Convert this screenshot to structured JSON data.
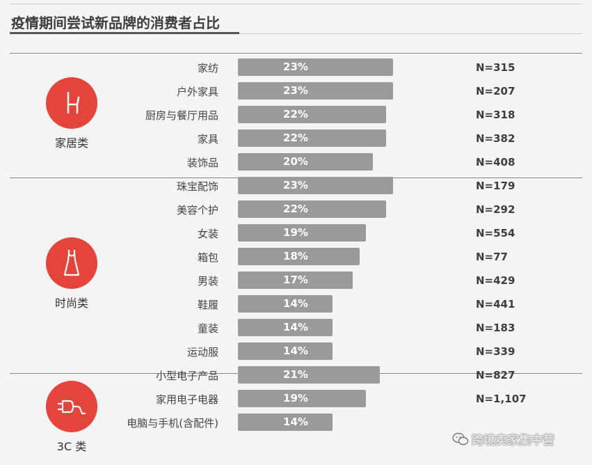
{
  "chart_data": {
    "type": "bar",
    "orientation": "horizontal",
    "title": "疫情期间尝试新品牌的消费者占比",
    "xlim": [
      0,
      100
    ],
    "groups": [
      {
        "name": "家居类",
        "icon": "chair-icon",
        "items": [
          {
            "category": "家纺",
            "value": 23,
            "label": "23%",
            "n": "N=315"
          },
          {
            "category": "户外家具",
            "value": 23,
            "label": "23%",
            "n": "N=207"
          },
          {
            "category": "厨房与餐厅用品",
            "value": 22,
            "label": "22%",
            "n": "N=318"
          },
          {
            "category": "家具",
            "value": 22,
            "label": "22%",
            "n": "N=382"
          },
          {
            "category": "装饰品",
            "value": 20,
            "label": "20%",
            "n": "N=408"
          }
        ]
      },
      {
        "name": "时尚类",
        "icon": "dress-icon",
        "items": [
          {
            "category": "珠宝配饰",
            "value": 23,
            "label": "23%",
            "n": "N=179"
          },
          {
            "category": "美容个护",
            "value": 22,
            "label": "22%",
            "n": "N=292"
          },
          {
            "category": "女装",
            "value": 19,
            "label": "19%",
            "n": "N=554"
          },
          {
            "category": "箱包",
            "value": 18,
            "label": "18%",
            "n": "N=77"
          },
          {
            "category": "男装",
            "value": 17,
            "label": "17%",
            "n": "N=429"
          },
          {
            "category": "鞋履",
            "value": 14,
            "label": "14%",
            "n": "N=441"
          },
          {
            "category": "童装",
            "value": 14,
            "label": "14%",
            "n": "N=183"
          },
          {
            "category": "运动服",
            "value": 14,
            "label": "14%",
            "n": "N=339"
          }
        ]
      },
      {
        "name": "3C 类",
        "icon": "plug-icon",
        "items": [
          {
            "category": "小型电子产品",
            "value": 21,
            "label": "21%",
            "n": "N=827"
          },
          {
            "category": "家用电子电器",
            "value": 19,
            "label": "19%",
            "n": "N=1,107"
          },
          {
            "category": "电脑与手机(含配件)",
            "value": 14,
            "label": "14%",
            "n": ""
          }
        ]
      }
    ]
  },
  "watermark": {
    "text": "跨境卖家集中营",
    "icon": "wechat-icon"
  },
  "colors": {
    "accent": "#e5443a",
    "bar": "#9a9a9a",
    "background": "#f4f4f4"
  }
}
